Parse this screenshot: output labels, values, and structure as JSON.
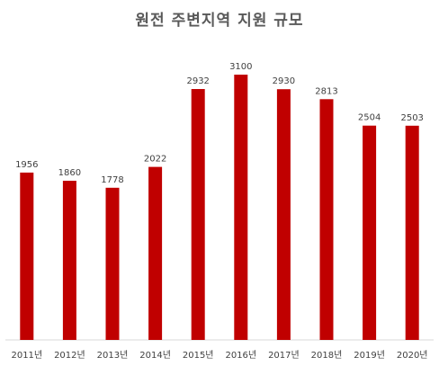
{
  "chart_data": {
    "type": "bar",
    "title": "원전 주변지역 지원 규모",
    "categories": [
      "2011년",
      "2012년",
      "2013년",
      "2014년",
      "2015년",
      "2016년",
      "2017년",
      "2018년",
      "2019년",
      "2020년"
    ],
    "values": [
      1956,
      1860,
      1778,
      2022,
      2932,
      3100,
      2930,
      2813,
      2504,
      2503
    ],
    "ylim": [
      0,
      3300
    ],
    "grid": false,
    "legend": "none",
    "bar_color": "#C00000"
  }
}
